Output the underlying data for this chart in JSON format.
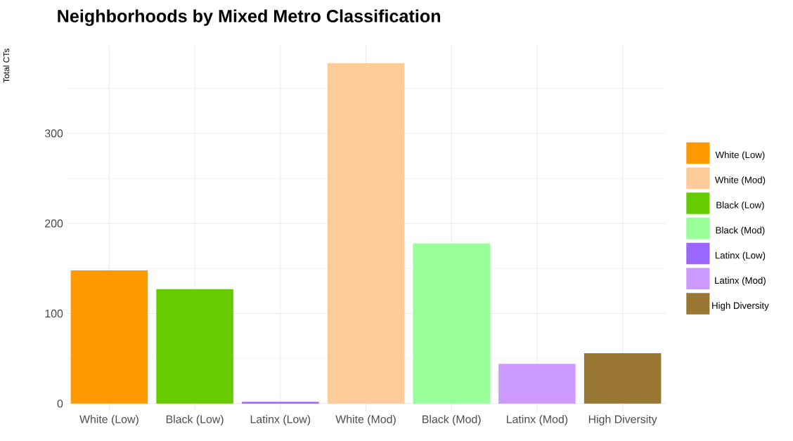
{
  "chart_data": {
    "type": "bar",
    "title": "Neighborhoods by Mixed Metro Classification",
    "ylabel": "Total CTs",
    "categories": [
      "White (Low)",
      "Black (Low)",
      "Latinx (Low)",
      "White (Mod)",
      "Black (Mod)",
      "Latinx (Mod)",
      "High Diversity"
    ],
    "series": [
      {
        "name": "White (Low)",
        "color": "#ff9900",
        "values": [
          148,
          null,
          null,
          null,
          null,
          null,
          null
        ]
      },
      {
        "name": "White (Mod)",
        "color": "#ffcc99",
        "values": [
          null,
          null,
          null,
          378,
          null,
          null,
          null
        ]
      },
      {
        "name": "Black (Low)",
        "color": "#66cc00",
        "values": [
          null,
          127,
          null,
          null,
          null,
          null,
          null
        ]
      },
      {
        "name": "Black (Mod)",
        "color": "#99ff99",
        "values": [
          null,
          null,
          null,
          null,
          178,
          null,
          null
        ]
      },
      {
        "name": "Latinx (Low)",
        "color": "#9966ff",
        "values": [
          null,
          null,
          2,
          null,
          null,
          null,
          null
        ]
      },
      {
        "name": "Latinx (Mod)",
        "color": "#cc99ff",
        "values": [
          null,
          null,
          null,
          null,
          null,
          44,
          null
        ]
      },
      {
        "name": "High Diversity",
        "color": "#997733",
        "values": [
          null,
          null,
          null,
          null,
          null,
          null,
          56
        ]
      }
    ],
    "ylim": [
      -9,
      398
    ],
    "yticks": [
      0,
      100,
      200,
      300
    ],
    "grid": true,
    "legend": "right"
  }
}
